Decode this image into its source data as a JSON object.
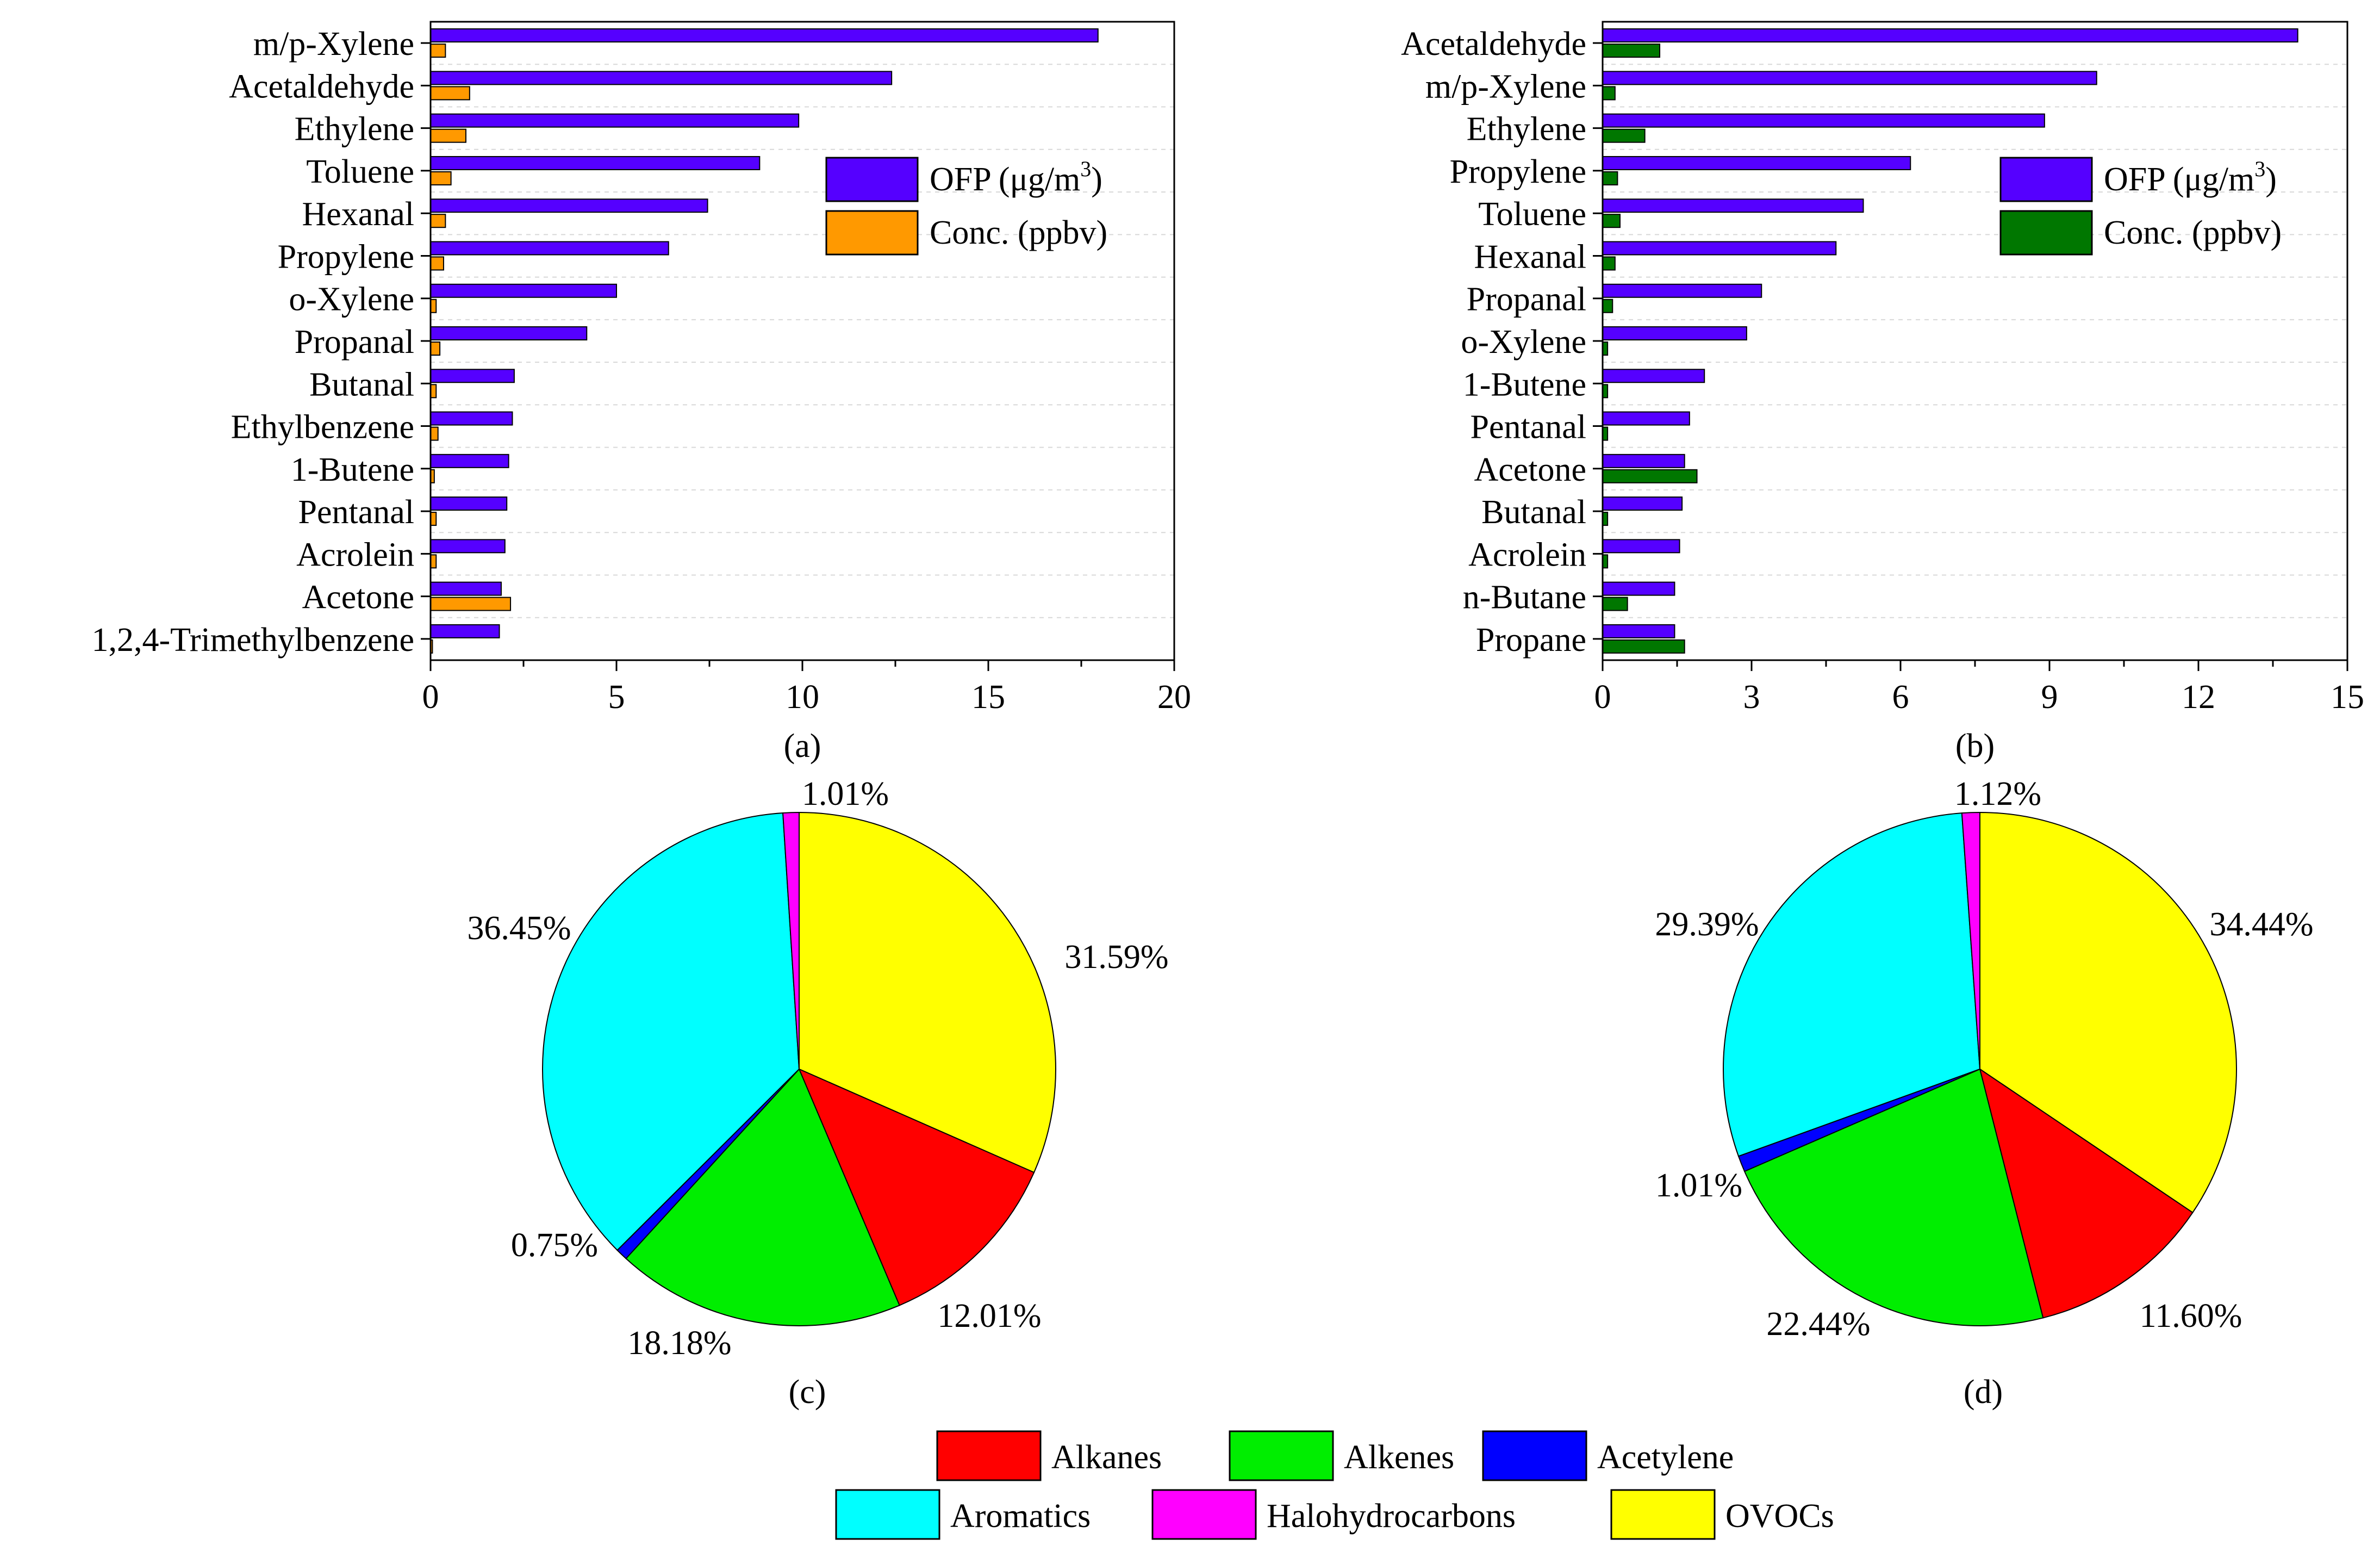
{
  "chart_data": [
    {
      "id": "a",
      "type": "bar",
      "orientation": "horizontal",
      "panel_label": "(a)",
      "categories": [
        "m/p-Xylene",
        "Acetaldehyde",
        "Ethylene",
        "Toluene",
        "Hexanal",
        "Propylene",
        "o-Xylene",
        "Propanal",
        "Butanal",
        "Ethylbenzene",
        "1-Butene",
        "Pentanal",
        "Acrolein",
        "Acetone",
        "1,2,4-Trimethylbenzene"
      ],
      "series": [
        {
          "name": "OFP (μg/m",
          "superscript": "3",
          "name_suffix": ")",
          "color": "#5500FF",
          "values": [
            17.95,
            12.4,
            9.9,
            8.85,
            7.45,
            6.4,
            5.0,
            4.2,
            2.25,
            2.2,
            2.1,
            2.05,
            2.0,
            1.9,
            1.85
          ]
        },
        {
          "name": "Conc. (ppbv)",
          "superscript": "",
          "name_suffix": "",
          "color": "#FF9900",
          "values": [
            0.4,
            1.05,
            0.95,
            0.55,
            0.4,
            0.35,
            0.15,
            0.25,
            0.15,
            0.2,
            0.1,
            0.15,
            0.15,
            2.15,
            0.05
          ]
        }
      ],
      "xlim": [
        0,
        20
      ],
      "ticks": [
        "0",
        "5",
        "10",
        "15",
        "20"
      ],
      "tick_values": [
        0,
        5,
        10,
        15,
        20
      ],
      "legend": "center-right"
    },
    {
      "id": "b",
      "type": "bar",
      "orientation": "horizontal",
      "panel_label": "(b)",
      "categories": [
        "Acetaldehyde",
        "m/p-Xylene",
        "Ethylene",
        "Propylene",
        "Toluene",
        "Hexanal",
        "Propanal",
        "o-Xylene",
        "1-Butene",
        "Pentanal",
        "Acetone",
        "Butanal",
        "Acrolein",
        "n-Butane",
        "Propane"
      ],
      "series": [
        {
          "name": "OFP (μg/m",
          "superscript": "3",
          "name_suffix": ")",
          "color": "#5500FF",
          "values": [
            14.0,
            9.95,
            8.9,
            6.2,
            5.25,
            4.7,
            3.2,
            2.9,
            2.05,
            1.75,
            1.65,
            1.6,
            1.55,
            1.45,
            1.45
          ]
        },
        {
          "name": "Conc. (ppbv)",
          "superscript": "",
          "name_suffix": "",
          "color": "#007700",
          "values": [
            1.15,
            0.25,
            0.85,
            0.3,
            0.35,
            0.25,
            0.2,
            0.1,
            0.1,
            0.1,
            1.9,
            0.1,
            0.1,
            0.5,
            1.65
          ]
        }
      ],
      "xlim": [
        0,
        15
      ],
      "ticks": [
        "0",
        "3",
        "6",
        "9",
        "12",
        "15"
      ],
      "tick_values": [
        0,
        3,
        6,
        9,
        12,
        15
      ],
      "legend": "center-right"
    },
    {
      "id": "c",
      "type": "pie",
      "panel_label": "(c)",
      "start": "top",
      "direction": "clockwise",
      "slices": [
        {
          "category": "OVOCs",
          "value": 31.59,
          "label": "31.59%"
        },
        {
          "category": "Alkanes",
          "value": 12.01,
          "label": "12.01%"
        },
        {
          "category": "Alkenes",
          "value": 18.18,
          "label": "18.18%"
        },
        {
          "category": "Acetylene",
          "value": 0.75,
          "label": "0.75%"
        },
        {
          "category": "Aromatics",
          "value": 36.45,
          "label": "36.45%"
        },
        {
          "category": "Halohydrocarbons",
          "value": 1.01,
          "label": "1.01%"
        }
      ]
    },
    {
      "id": "d",
      "type": "pie",
      "panel_label": "(d)",
      "start": "top",
      "direction": "clockwise",
      "slices": [
        {
          "category": "OVOCs",
          "value": 34.44,
          "label": "34.44%"
        },
        {
          "category": "Alkanes",
          "value": 11.6,
          "label": "11.60%"
        },
        {
          "category": "Alkenes",
          "value": 22.44,
          "label": "22.44%"
        },
        {
          "category": "Acetylene",
          "value": 1.01,
          "label": "1.01%"
        },
        {
          "category": "Aromatics",
          "value": 29.39,
          "label": "29.39%"
        },
        {
          "category": "Halohydrocarbons",
          "value": 1.12,
          "label": "1.12%"
        }
      ]
    }
  ],
  "pie_legend": {
    "position": "bottom-center",
    "items": [
      {
        "name": "Alkanes",
        "color": "#FF0000"
      },
      {
        "name": "Alkenes",
        "color": "#00EE00"
      },
      {
        "name": "Acetylene",
        "color": "#0000FF"
      },
      {
        "name": "Aromatics",
        "color": "#00FFFF"
      },
      {
        "name": "Halohydrocarbons",
        "color": "#FF00FF"
      },
      {
        "name": "OVOCs",
        "color": "#FFFF00"
      }
    ]
  }
}
